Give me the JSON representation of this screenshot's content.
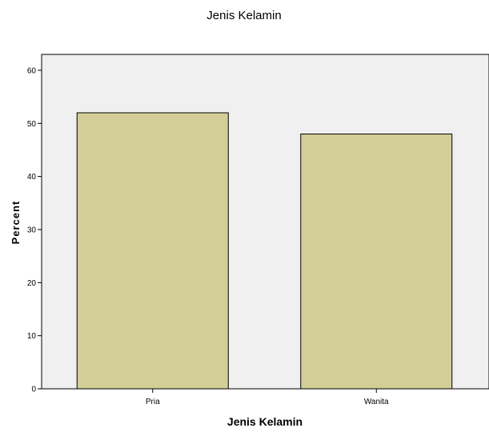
{
  "chart_data": {
    "type": "bar",
    "title": "Jenis Kelamin",
    "xlabel": "Jenis Kelamin",
    "ylabel": "Percent",
    "categories": [
      "Pria",
      "Wanita"
    ],
    "values": [
      52,
      48
    ],
    "ylim": [
      0,
      63
    ],
    "yticks": [
      0,
      10,
      20,
      30,
      40,
      50,
      60
    ],
    "grid": false,
    "legend": "none",
    "colors": {
      "bar_fill": "#d3ce97",
      "bar_stroke": "#000000",
      "plot_background": "#f0f0f0",
      "axis": "#000000"
    }
  }
}
